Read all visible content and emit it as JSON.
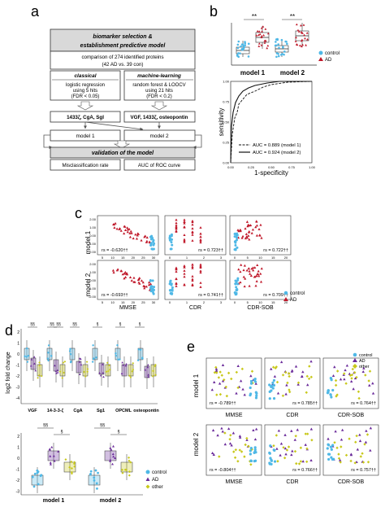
{
  "colors": {
    "control": "#4fb8e6",
    "ad_red": "#c0182a",
    "ad_purple": "#6a2a9a",
    "other": "#c8c81a",
    "header_fill": "#d9d9d9",
    "box_gray": "#bdbdbd"
  },
  "panels": {
    "a": {
      "letter": "a",
      "header1": "biomarker selection &",
      "header2": "establishment predictive model",
      "comp1": "comparison of 274 identified proteins",
      "comp2": "(42 AD vs. 39 con)",
      "classical_title": "classical",
      "classical_l1": "logistic regression",
      "classical_l2": "using 5 hits",
      "classical_l3": "(FDR < 0.05)",
      "ml_title": "machine-learning",
      "ml_l1": "random forest & LOOCV",
      "ml_l2": "using 21 hits",
      "ml_l3": "(FDR < 0.2)",
      "classical_markers": "1433ζ, CgA, SgI",
      "ml_markers": "VGF, 1433ζ, osteopontin",
      "model1": "model 1",
      "model2": "model 2",
      "validation": "validation of the model",
      "misclass": "Misclassification rate",
      "auc_curve": "AUC of ROC curve"
    },
    "b": {
      "letter": "b",
      "sig1": "**",
      "sig2": "**",
      "xcat1": "model 1",
      "xcat2": "model 2",
      "legend_control": "control",
      "legend_ad": "AD",
      "roc_ylabel": "sensitivity",
      "roc_xlabel": "1-specificity",
      "roc_legend1": "AUC = 0.889 (model 1)",
      "roc_legend2": "AUC = 0.924 (model 2)",
      "roc_xticks": [
        "0.00",
        "0.25",
        "0.50",
        "0.75",
        "1.00"
      ],
      "roc_yticks": [
        "0.00",
        "0.25",
        "0.50",
        "0.75",
        "1.00"
      ]
    },
    "c": {
      "letter": "c",
      "row1": "model 1",
      "row2": "model 2",
      "xlabels": [
        "MMSE",
        "CDR",
        "CDR-SOB"
      ],
      "stats_row1": [
        "rs = -0.620††",
        "rs = 0.723††",
        "rs = 0.722††"
      ],
      "stats_row2": [
        "rs = -0.693††",
        "rs = 0.741††",
        "rs = 0.709††"
      ],
      "legend_control": "control",
      "legend_ad": "AD",
      "yticks": [
        "2.00",
        "1.00",
        "0.00",
        "-1.00",
        "-2.00"
      ],
      "xticks_mmse": [
        "5",
        "10",
        "15",
        "20",
        "25",
        "30"
      ],
      "xticks_cdr": [
        "0",
        "1",
        "2",
        "3"
      ],
      "xticks_sob": [
        "0",
        "5",
        "10",
        "15",
        "20"
      ]
    },
    "d": {
      "letter": "d",
      "ylabel": "log2 fold change",
      "proteins": [
        "VGF",
        "14-3-3-ζ",
        "CgA",
        "Sg1",
        "OPCML",
        "osteopontin"
      ],
      "sig_labels": [
        "§§",
        "§§",
        "§§",
        "§§",
        "§",
        "§",
        "§"
      ],
      "yticks_top": [
        "2",
        "1",
        "0",
        "-1",
        "-2",
        "-3",
        "-4"
      ],
      "yticks_bottom": [
        "2",
        "1",
        "0",
        "-1",
        "-2",
        "-3"
      ],
      "xcat1": "model 1",
      "xcat2": "model 2",
      "bottom_sig": [
        "§§",
        "§",
        "§§",
        "§"
      ],
      "legend": [
        "control",
        "AD",
        "other"
      ]
    },
    "e": {
      "letter": "e",
      "row1": "model 1",
      "row2": "model 2",
      "xlabels": [
        "MMSE",
        "CDR",
        "CDR-SOB"
      ],
      "stats_row1": [
        "rs = -0.789††",
        "rs = 0.785††",
        "rs = 0.764††"
      ],
      "stats_row2": [
        "rs = -0.804††",
        "rs = 0.766††",
        "rs = 0.757††"
      ],
      "legend": [
        "control",
        "AD",
        "other"
      ]
    }
  }
}
